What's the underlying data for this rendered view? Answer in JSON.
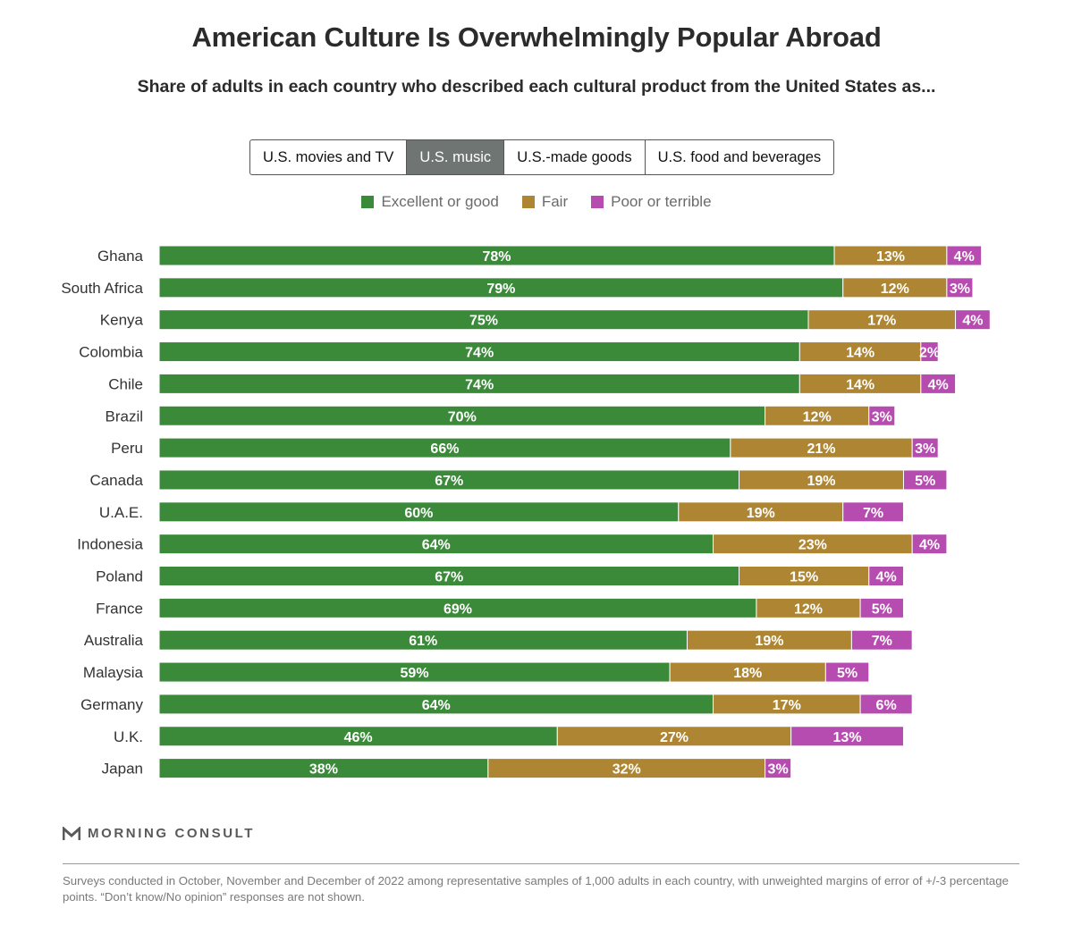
{
  "header": {
    "title": "American Culture Is Overwhelmingly Popular Abroad",
    "subtitle": "Share of adults in each country who described each cultural product from the United States as..."
  },
  "tabs": [
    {
      "label": "U.S. movies and TV",
      "active": false
    },
    {
      "label": "U.S. music",
      "active": true
    },
    {
      "label": "U.S.-made goods",
      "active": false
    },
    {
      "label": "U.S. food and beverages",
      "active": false
    }
  ],
  "legend": [
    {
      "label": "Excellent or good",
      "color": "#3b8a3a"
    },
    {
      "label": "Fair",
      "color": "#ae8633"
    },
    {
      "label": "Poor or terrible",
      "color": "#b74cb0"
    }
  ],
  "chart_data": {
    "type": "bar",
    "orientation": "horizontal",
    "stacked": true,
    "title": "American Culture Is Overwhelmingly Popular Abroad",
    "subtitle": "Share of adults in each country who described each cultural product from the United States as...",
    "categories": [
      "Ghana",
      "South Africa",
      "Kenya",
      "Colombia",
      "Chile",
      "Brazil",
      "Peru",
      "Canada",
      "U.A.E.",
      "Indonesia",
      "Poland",
      "France",
      "Australia",
      "Malaysia",
      "Germany",
      "U.K.",
      "Japan"
    ],
    "series": [
      {
        "name": "Excellent or good",
        "color": "#3b8a3a",
        "values": [
          78,
          79,
          75,
          74,
          74,
          70,
          66,
          67,
          60,
          64,
          67,
          69,
          61,
          59,
          64,
          46,
          38
        ]
      },
      {
        "name": "Fair",
        "color": "#ae8633",
        "values": [
          13,
          12,
          17,
          14,
          14,
          12,
          21,
          19,
          19,
          23,
          15,
          12,
          19,
          18,
          17,
          27,
          32
        ]
      },
      {
        "name": "Poor or terrible",
        "color": "#b74cb0",
        "values": [
          4,
          3,
          4,
          2,
          4,
          3,
          3,
          5,
          7,
          4,
          4,
          5,
          7,
          5,
          6,
          13,
          3
        ]
      }
    ],
    "value_suffix": "%",
    "xlim": [
      0,
      100
    ],
    "grid": false,
    "legend_position": "top"
  },
  "brand": {
    "name": "MORNING CONSULT"
  },
  "footnote": "Surveys conducted in October, November and December of 2022 among representative samples of 1,000 adults in each country, with unweighted margins of error of +/-3 percentage points. “Don’t know/No opinion” responses are not shown."
}
